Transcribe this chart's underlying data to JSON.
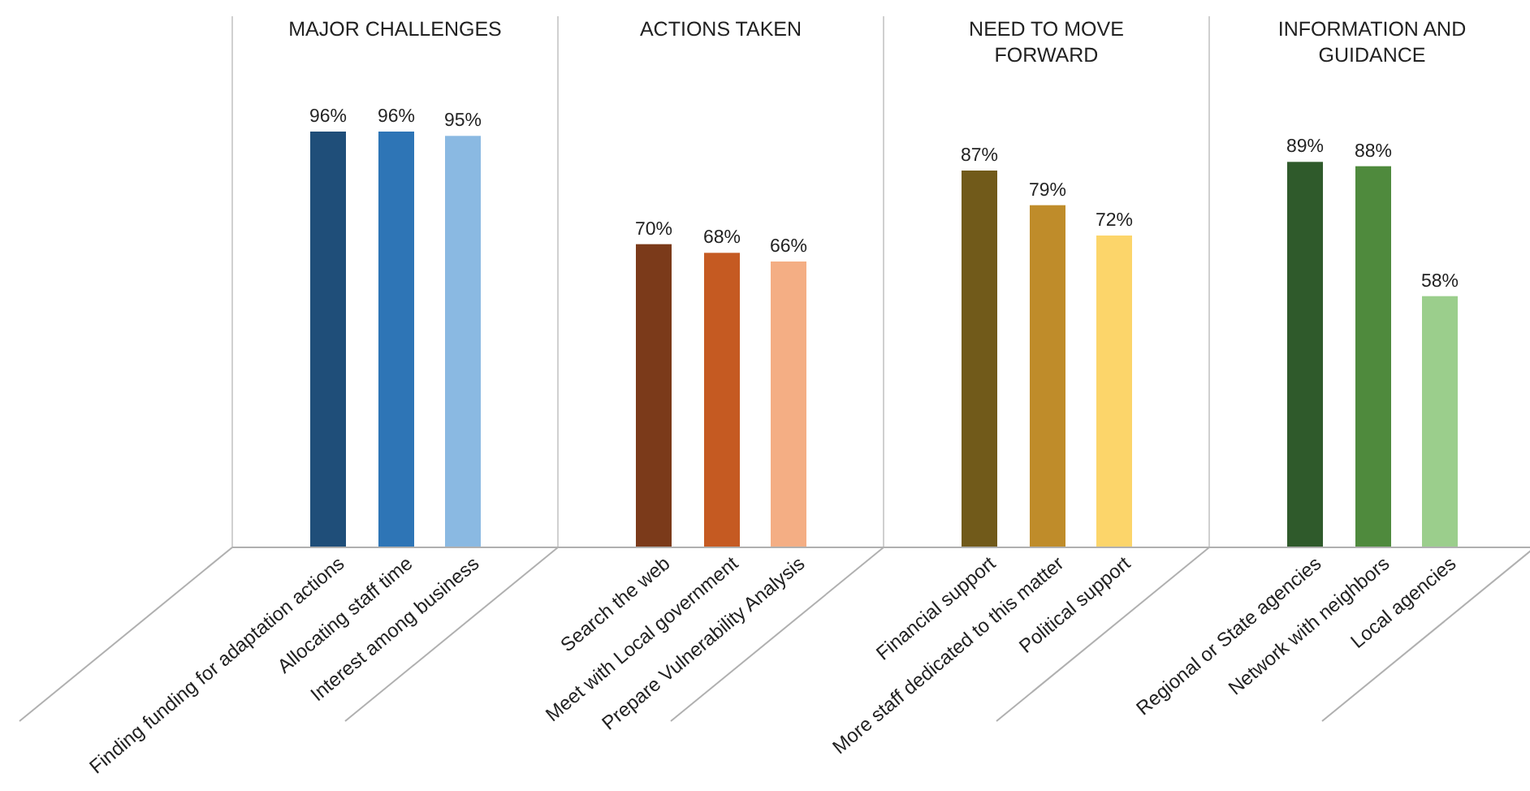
{
  "chart_data": [
    {
      "type": "bar",
      "title": "MAJOR CHALLENGES",
      "categories": [
        "Finding funding for adaptation actions",
        "Allocating staff time",
        "Interest among business"
      ],
      "values": [
        96,
        96,
        95
      ],
      "colors": [
        "#1f4e79",
        "#2e75b6",
        "#8ab9e2"
      ],
      "value_labels": [
        "96%",
        "96%",
        "95%"
      ]
    },
    {
      "type": "bar",
      "title": "ACTIONS TAKEN",
      "categories": [
        "Search the web",
        "Meet with Local government",
        "Prepare Vulnerability Analysis"
      ],
      "values": [
        70,
        68,
        66
      ],
      "colors": [
        "#7b3a1a",
        "#c55a22",
        "#f4ae84"
      ],
      "value_labels": [
        "70%",
        "68%",
        "66%"
      ]
    },
    {
      "type": "bar",
      "title": "NEED TO MOVE FORWARD",
      "categories": [
        "Financial support",
        "More staff dedicated to this matter",
        "Political support"
      ],
      "values": [
        87,
        79,
        72
      ],
      "colors": [
        "#715a1a",
        "#bf8c2a",
        "#fcd56a"
      ],
      "value_labels": [
        "87%",
        "79%",
        "72%"
      ]
    },
    {
      "type": "bar",
      "title": "INFORMATION AND GUIDANCE",
      "categories": [
        "Regional or State agencies",
        "Network with neighbors",
        "Local agencies"
      ],
      "values": [
        89,
        88,
        58
      ],
      "colors": [
        "#2f5a2b",
        "#4f8a3d",
        "#9bce8c"
      ],
      "value_labels": [
        "89%",
        "88%",
        "58%"
      ]
    }
  ]
}
